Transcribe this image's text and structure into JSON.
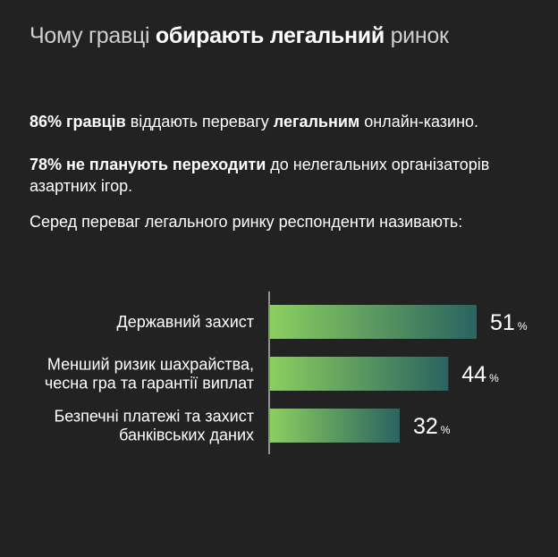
{
  "title": {
    "part1": "Чому гравці ",
    "bold": "обирають легальний",
    "part2": " ринок"
  },
  "paragraphs": {
    "p1_bold1": "86% гравців",
    "p1_text1": " віддають перевагу ",
    "p1_bold2": "легальним",
    "p1_text2": " онлайн-казино.",
    "p2_bold": "78% не планують переходити",
    "p2_text": " до нелегальних організаторів азартних ігор.",
    "p3_text": "Серед переваг легального ринку респонденти називають:"
  },
  "colors": {
    "background": "#222222",
    "bar_gradient_start": "#8bcf5f",
    "bar_gradient_end": "#2a6360",
    "axis": "#ffffff"
  },
  "chart_data": {
    "type": "bar",
    "orientation": "horizontal",
    "categories": [
      [
        "Державний захист"
      ],
      [
        "Менший ризик шахрайства,",
        "чесна гра та гарантії виплат"
      ],
      [
        "Безпечні платежі та захист",
        "банківських даних"
      ]
    ],
    "values": [
      51,
      44,
      32
    ],
    "value_suffix": "%",
    "xlim": [
      0,
      100
    ]
  }
}
